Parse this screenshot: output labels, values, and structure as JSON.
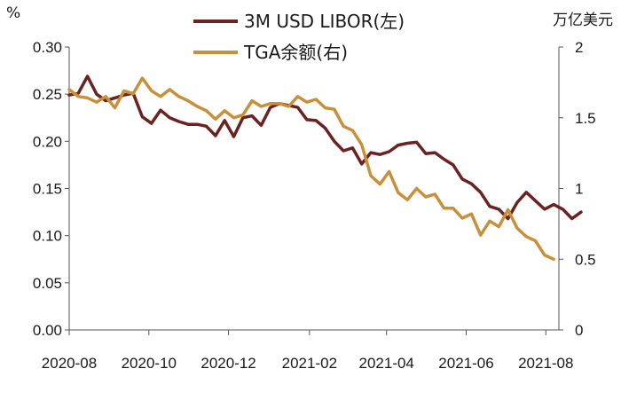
{
  "chart_data": {
    "type": "line",
    "y_left_unit": "%",
    "y_right_unit": "万亿美元",
    "x_ticks": [
      "2020-08",
      "2020-10",
      "2020-12",
      "2021-02",
      "2021-04",
      "2021-06",
      "2021-08"
    ],
    "y_left_ticks": [
      "0.00",
      "0.05",
      "0.10",
      "0.15",
      "0.20",
      "0.25",
      "0.30"
    ],
    "y_right_ticks": [
      "0",
      "0.5",
      "1",
      "1.5",
      "2"
    ],
    "y_left_range": [
      0,
      0.3
    ],
    "y_right_range": [
      0,
      2
    ],
    "x_range": [
      "2020-08-01",
      "2021-08-11"
    ],
    "grid": false,
    "legend_position": "top",
    "series": [
      {
        "name": "3M USD LIBOR(左)",
        "axis": "left",
        "color": "#6b2222",
        "points": [
          [
            "2020-08-01",
            0.249
          ],
          [
            "2020-08-08",
            0.251
          ],
          [
            "2020-08-15",
            0.269
          ],
          [
            "2020-08-22",
            0.25
          ],
          [
            "2020-08-29",
            0.243
          ],
          [
            "2020-09-05",
            0.246
          ],
          [
            "2020-09-12",
            0.249
          ],
          [
            "2020-09-19",
            0.251
          ],
          [
            "2020-09-26",
            0.226
          ],
          [
            "2020-10-03",
            0.219
          ],
          [
            "2020-10-10",
            0.233
          ],
          [
            "2020-10-17",
            0.225
          ],
          [
            "2020-10-24",
            0.221
          ],
          [
            "2020-10-31",
            0.218
          ],
          [
            "2020-11-07",
            0.218
          ],
          [
            "2020-11-14",
            0.216
          ],
          [
            "2020-11-21",
            0.206
          ],
          [
            "2020-11-28",
            0.222
          ],
          [
            "2020-12-05",
            0.205
          ],
          [
            "2020-12-12",
            0.225
          ],
          [
            "2020-12-19",
            0.227
          ],
          [
            "2020-12-26",
            0.217
          ],
          [
            "2021-01-02",
            0.236
          ],
          [
            "2021-01-09",
            0.24
          ],
          [
            "2021-01-16",
            0.238
          ],
          [
            "2021-01-23",
            0.236
          ],
          [
            "2021-01-30",
            0.223
          ],
          [
            "2021-02-06",
            0.222
          ],
          [
            "2021-02-13",
            0.214
          ],
          [
            "2021-02-20",
            0.2
          ],
          [
            "2021-02-27",
            0.19
          ],
          [
            "2021-03-06",
            0.193
          ],
          [
            "2021-03-13",
            0.176
          ],
          [
            "2021-03-20",
            0.188
          ],
          [
            "2021-03-27",
            0.186
          ],
          [
            "2021-04-03",
            0.189
          ],
          [
            "2021-04-10",
            0.196
          ],
          [
            "2021-04-17",
            0.198
          ],
          [
            "2021-04-24",
            0.199
          ],
          [
            "2021-05-01",
            0.187
          ],
          [
            "2021-05-08",
            0.188
          ],
          [
            "2021-05-15",
            0.181
          ],
          [
            "2021-05-22",
            0.175
          ],
          [
            "2021-05-29",
            0.16
          ],
          [
            "2021-06-05",
            0.155
          ],
          [
            "2021-06-12",
            0.146
          ],
          [
            "2021-06-19",
            0.131
          ],
          [
            "2021-06-26",
            0.128
          ],
          [
            "2021-07-03",
            0.118
          ],
          [
            "2021-07-10",
            0.135
          ],
          [
            "2021-07-17",
            0.146
          ],
          [
            "2021-07-24",
            0.137
          ],
          [
            "2021-07-31",
            0.128
          ],
          [
            "2021-08-07",
            0.133
          ],
          [
            "2021-08-14",
            0.128
          ],
          [
            "2021-08-21",
            0.118
          ],
          [
            "2021-08-28",
            0.125
          ]
        ]
      },
      {
        "name": "TGA余额(右)",
        "axis": "right",
        "color": "#c8903a",
        "points": [
          [
            "2020-08-01",
            1.7
          ],
          [
            "2020-08-08",
            1.65
          ],
          [
            "2020-08-15",
            1.64
          ],
          [
            "2020-08-22",
            1.61
          ],
          [
            "2020-08-29",
            1.65
          ],
          [
            "2020-09-05",
            1.57
          ],
          [
            "2020-09-12",
            1.69
          ],
          [
            "2020-09-19",
            1.67
          ],
          [
            "2020-09-26",
            1.78
          ],
          [
            "2020-10-03",
            1.69
          ],
          [
            "2020-10-10",
            1.65
          ],
          [
            "2020-10-17",
            1.7
          ],
          [
            "2020-10-24",
            1.65
          ],
          [
            "2020-10-31",
            1.62
          ],
          [
            "2020-11-07",
            1.58
          ],
          [
            "2020-11-14",
            1.55
          ],
          [
            "2020-11-21",
            1.49
          ],
          [
            "2020-11-28",
            1.55
          ],
          [
            "2020-12-05",
            1.5
          ],
          [
            "2020-12-12",
            1.52
          ],
          [
            "2020-12-19",
            1.62
          ],
          [
            "2020-12-26",
            1.58
          ],
          [
            "2021-01-02",
            1.6
          ],
          [
            "2021-01-09",
            1.6
          ],
          [
            "2021-01-16",
            1.58
          ],
          [
            "2021-01-23",
            1.65
          ],
          [
            "2021-01-30",
            1.61
          ],
          [
            "2021-02-06",
            1.63
          ],
          [
            "2021-02-13",
            1.57
          ],
          [
            "2021-02-20",
            1.56
          ],
          [
            "2021-02-27",
            1.44
          ],
          [
            "2021-03-06",
            1.41
          ],
          [
            "2021-03-13",
            1.31
          ],
          [
            "2021-03-20",
            1.09
          ],
          [
            "2021-03-27",
            1.03
          ],
          [
            "2021-04-03",
            1.12
          ],
          [
            "2021-04-10",
            0.97
          ],
          [
            "2021-04-17",
            0.92
          ],
          [
            "2021-04-24",
            1.0
          ],
          [
            "2021-05-01",
            0.94
          ],
          [
            "2021-05-08",
            0.96
          ],
          [
            "2021-05-15",
            0.86
          ],
          [
            "2021-05-22",
            0.86
          ],
          [
            "2021-05-29",
            0.79
          ],
          [
            "2021-06-05",
            0.82
          ],
          [
            "2021-06-12",
            0.67
          ],
          [
            "2021-06-19",
            0.77
          ],
          [
            "2021-06-26",
            0.73
          ],
          [
            "2021-07-03",
            0.85
          ],
          [
            "2021-07-10",
            0.72
          ],
          [
            "2021-07-17",
            0.66
          ],
          [
            "2021-07-24",
            0.63
          ],
          [
            "2021-07-31",
            0.53
          ],
          [
            "2021-08-07",
            0.5
          ]
        ]
      }
    ]
  }
}
